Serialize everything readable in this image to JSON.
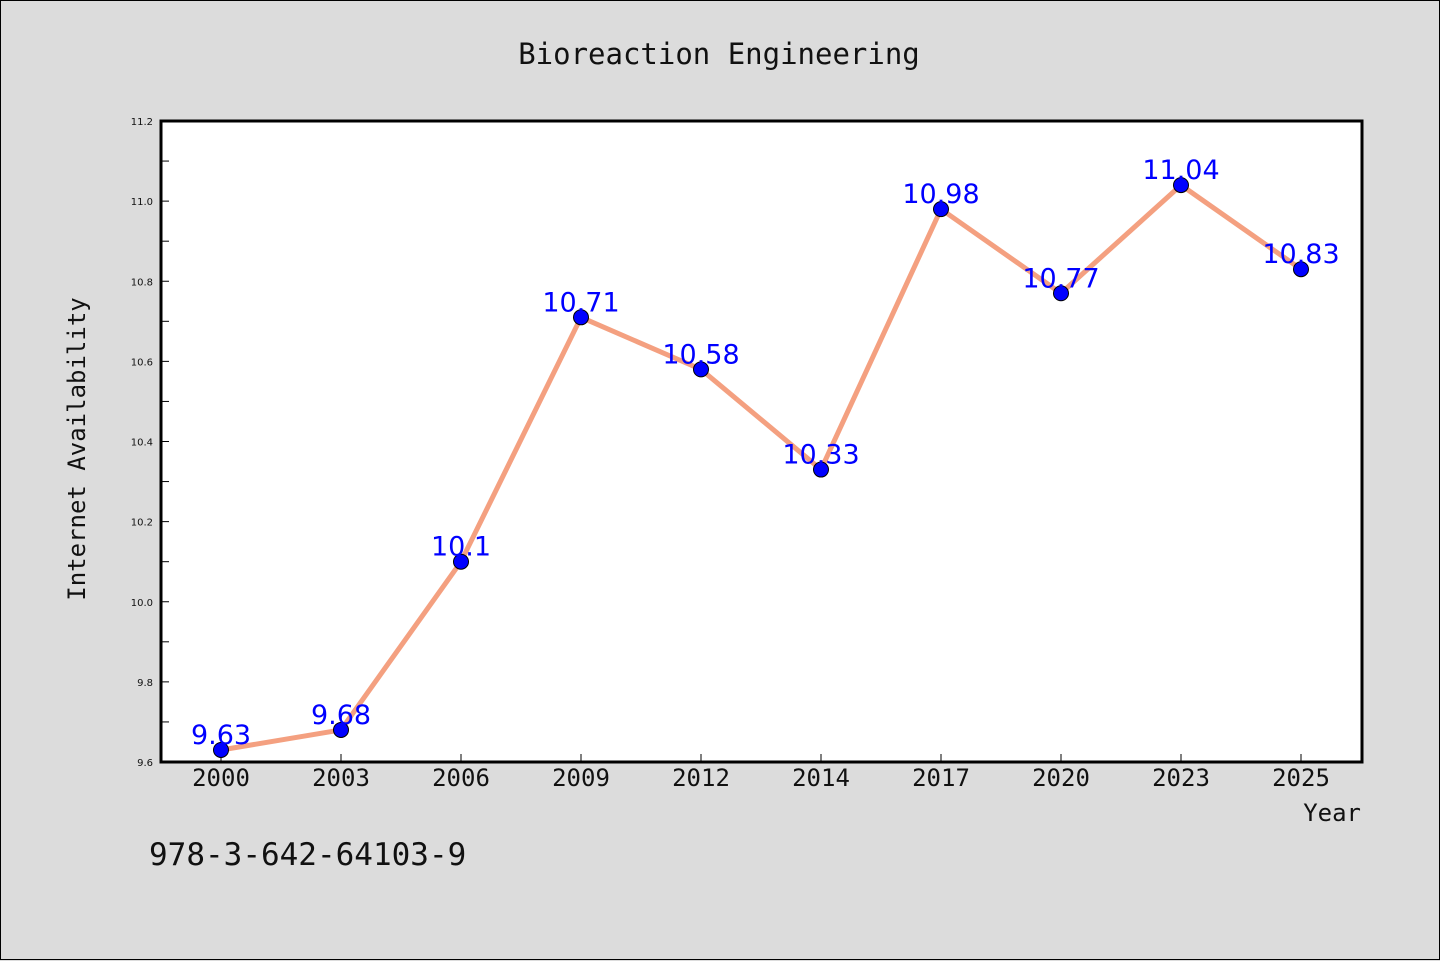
{
  "figure": {
    "isbn": "978-3-642-64103-9"
  },
  "colors": {
    "background": "#dcdcdc",
    "plot_area": "#ffffff",
    "line": "#f4a080",
    "marker": "#0000ff",
    "label": "#0000ff"
  },
  "chart_data": {
    "type": "line",
    "title": "Bioreaction Engineering",
    "xlabel": "Year",
    "ylabel": "Internet Availability",
    "categories": [
      "2000",
      "2003",
      "2006",
      "2009",
      "2012",
      "2014",
      "2017",
      "2020",
      "2023",
      "2025"
    ],
    "series": [
      {
        "values": [
          9.63,
          9.68,
          10.1,
          10.71,
          10.58,
          10.33,
          10.98,
          10.77,
          11.04,
          10.83
        ],
        "data_labels": [
          "9.63",
          "9.68",
          "10.1",
          "10.71",
          "10.58",
          "10.33",
          "10.98",
          "10.77",
          "11.04",
          "10.83"
        ]
      }
    ],
    "ylim": [
      9.6,
      11.2
    ],
    "yticks": [
      "9.6",
      "9.8",
      "10.0",
      "10.2",
      "10.4",
      "10.6",
      "10.8",
      "11.0",
      "11.2"
    ],
    "grid": false,
    "legend": "none"
  }
}
